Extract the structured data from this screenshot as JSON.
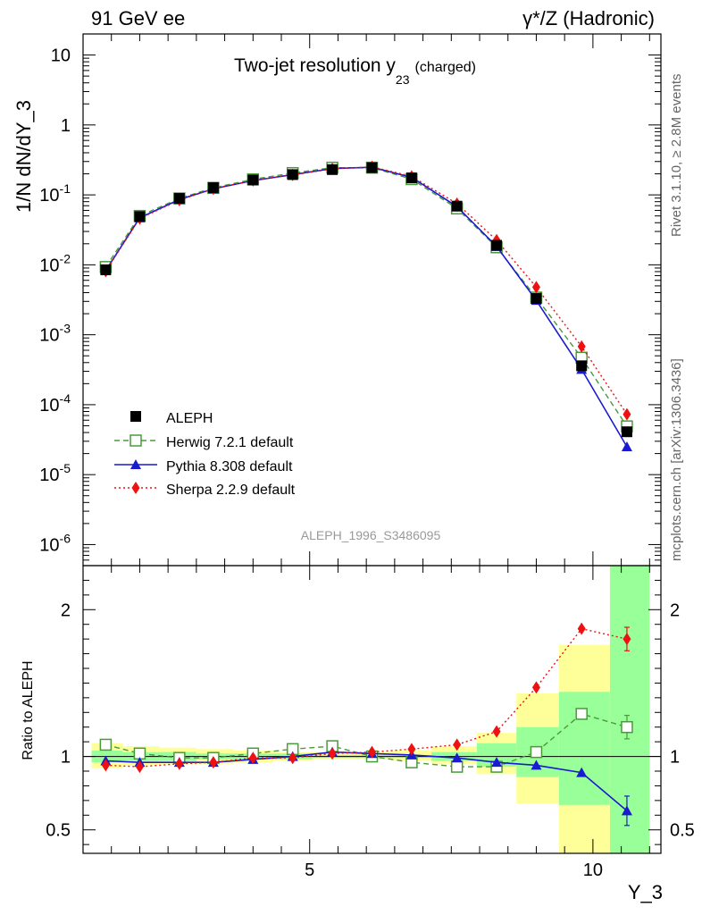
{
  "header": {
    "left": "91 GeV ee",
    "right_gamma": "γ",
    "right_rest": "*/Z (Hadronic)"
  },
  "side_labels": {
    "rivet": "Rivet 3.1.10, ≥ 2.8M events",
    "mcplots": "mcplots.cern.ch [arXiv:1306.3436]"
  },
  "analysis_id": "ALEPH_1996_S3486095",
  "chart_data": [
    {
      "type": "line",
      "title_main": "Two-jet resolution y",
      "title_sub": "23",
      "title_suffix": "(charged)",
      "ylabel": "1/N dN/dY_3",
      "xlabel": "Y_3",
      "yscale": "log",
      "ylim": [
        5e-07,
        20
      ],
      "xlim": [
        1,
        11.2
      ],
      "ytick_labels": [
        {
          "base": "10",
          "exp": "-6"
        },
        {
          "base": "10",
          "exp": "-5"
        },
        {
          "base": "10",
          "exp": "-4"
        },
        {
          "base": "10",
          "exp": "-3"
        },
        {
          "base": "10",
          "exp": "-2"
        },
        {
          "base": "10",
          "exp": "-1"
        },
        {
          "base": "1",
          "exp": ""
        },
        {
          "base": "10",
          "exp": ""
        }
      ],
      "x": [
        1.4,
        2.0,
        2.7,
        3.3,
        4.0,
        4.7,
        5.4,
        6.1,
        6.8,
        7.6,
        8.3,
        9.0,
        9.8,
        10.6
      ],
      "series": [
        {
          "name": "ALEPH",
          "color": "#000000",
          "marker": "square-filled",
          "line": "none",
          "values": [
            0.0085,
            0.049,
            0.089,
            0.127,
            0.163,
            0.195,
            0.23,
            0.245,
            0.175,
            0.069,
            0.019,
            0.0033,
            0.00036,
            4.1e-05
          ]
        },
        {
          "name": "Herwig 7.2.1 default",
          "color": "#4a9a3a",
          "marker": "square-open",
          "line": "dashed",
          "values": [
            0.0093,
            0.05,
            0.089,
            0.126,
            0.167,
            0.205,
            0.245,
            0.245,
            0.168,
            0.064,
            0.0178,
            0.0034,
            0.00047,
            4.9e-05
          ]
        },
        {
          "name": "Pythia 8.308 default",
          "color": "#1a1ad0",
          "marker": "triangle",
          "line": "solid",
          "values": [
            0.0083,
            0.047,
            0.086,
            0.122,
            0.16,
            0.195,
            0.238,
            0.248,
            0.178,
            0.068,
            0.0183,
            0.0031,
            0.00032,
            2.5e-05
          ]
        },
        {
          "name": "Sherpa 2.2.9 default",
          "color": "#ee1111",
          "marker": "diamond",
          "line": "dotted",
          "values": [
            0.0081,
            0.046,
            0.084,
            0.122,
            0.161,
            0.193,
            0.235,
            0.252,
            0.184,
            0.075,
            0.0225,
            0.0048,
            0.00068,
            7.3e-05
          ]
        }
      ]
    },
    {
      "type": "line",
      "ylabel": "Ratio to ALEPH",
      "ylim": [
        0.34,
        2.3
      ],
      "ytick_labels": [
        "0.5",
        "1",
        "2"
      ],
      "xtick_labels": [
        "5",
        "10"
      ],
      "x": [
        1.4,
        2.0,
        2.7,
        3.3,
        4.0,
        4.7,
        5.4,
        6.1,
        6.8,
        7.6,
        8.3,
        9.0,
        9.8,
        10.6
      ],
      "bands": {
        "edges": [
          1.15,
          1.7,
          2.35,
          3.0,
          3.65,
          4.35,
          5.05,
          5.75,
          6.45,
          7.15,
          7.95,
          8.65,
          9.4,
          10.3,
          11.0
        ],
        "outer_lo": [
          0.92,
          0.94,
          0.95,
          0.95,
          0.96,
          0.97,
          0.98,
          0.98,
          0.97,
          0.95,
          0.88,
          0.68,
          0.34,
          0.34
        ],
        "outer_hi": [
          1.09,
          1.07,
          1.06,
          1.05,
          1.04,
          1.03,
          1.03,
          1.03,
          1.04,
          1.07,
          1.16,
          1.43,
          1.76,
          2.3
        ],
        "inner_lo": [
          0.96,
          0.97,
          0.97,
          0.98,
          0.98,
          0.98,
          0.99,
          0.99,
          0.99,
          0.97,
          0.93,
          0.86,
          0.67,
          0.34
        ],
        "inner_hi": [
          1.04,
          1.03,
          1.03,
          1.02,
          1.02,
          1.02,
          1.01,
          1.01,
          1.01,
          1.03,
          1.09,
          1.2,
          1.44,
          2.3
        ],
        "outer_color": "#ffff99",
        "inner_color": "#99ff99"
      },
      "series": [
        {
          "name": "Herwig 7.2.1 default",
          "color": "#4a9a3a",
          "marker": "square-open",
          "line": "dashed",
          "values": [
            1.08,
            1.02,
            0.99,
            0.99,
            1.02,
            1.05,
            1.07,
            1.0,
            0.96,
            0.93,
            0.93,
            1.03,
            1.29,
            1.2
          ],
          "err_last": 0.08
        },
        {
          "name": "Pythia 8.308 default",
          "color": "#1a1ad0",
          "marker": "triangle",
          "line": "solid",
          "values": [
            0.97,
            0.96,
            0.96,
            0.96,
            0.98,
            1.0,
            1.03,
            1.02,
            1.01,
            0.99,
            0.96,
            0.94,
            0.89,
            0.63
          ],
          "err_last": 0.1
        },
        {
          "name": "Sherpa 2.2.9 default",
          "color": "#ee1111",
          "marker": "diamond",
          "line": "dotted",
          "values": [
            0.94,
            0.93,
            0.95,
            0.96,
            0.99,
            0.99,
            1.02,
            1.03,
            1.05,
            1.08,
            1.17,
            1.47,
            1.87,
            1.8
          ],
          "err_last": 0.08
        }
      ]
    }
  ]
}
